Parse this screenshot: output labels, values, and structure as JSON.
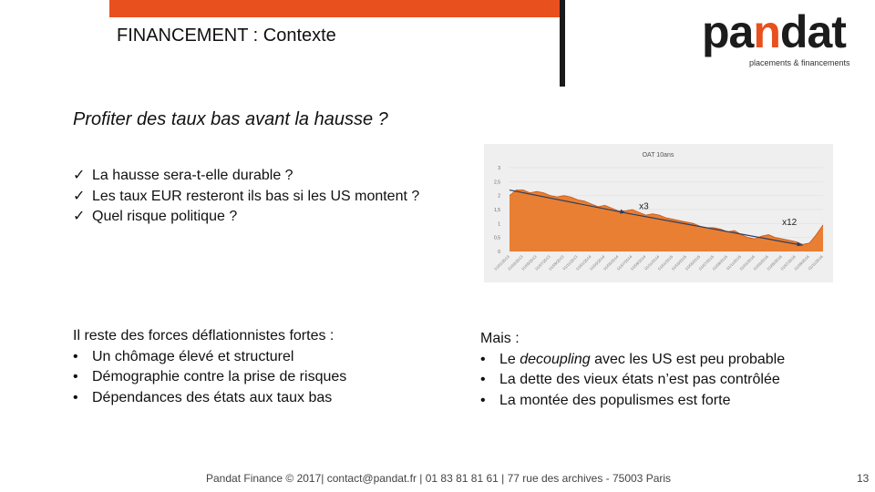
{
  "header": {
    "title": "FINANCEMENT : Contexte",
    "accent_color": "#e8501e"
  },
  "logo": {
    "word_start": "pa",
    "word_accent": "n",
    "word_end": "dat",
    "tagline": "placements & financements"
  },
  "subtitle": "Profiter des taux bas avant la hausse ?",
  "checks": [
    "La hausse sera-t-elle durable ?",
    "Les taux EUR resteront ils bas si les US montent ?",
    "Quel risque politique ?"
  ],
  "check_glyph": "✓",
  "chart_data": {
    "type": "area",
    "title": "OAT 10ans",
    "ylim": [
      0,
      3
    ],
    "y_ticks": [
      "3",
      "2,5",
      "2",
      "1,5",
      "1",
      "0,5",
      "0"
    ],
    "x_ticks": [
      "01/01/2013",
      "01/02/2013",
      "01/03/2013",
      "01/04/2013",
      "01/05/2013",
      "01/06/2013",
      "01/07/2013",
      "01/08/2013",
      "01/09/2013",
      "01/10/2013",
      "01/11/2013",
      "01/12/2013",
      "01/01/2014",
      "01/02/2014",
      "01/03/2014",
      "01/04/2014",
      "01/05/2014",
      "01/06/2014",
      "01/07/2014",
      "01/08/2014",
      "01/09/2014",
      "01/10/2014",
      "01/11/2014",
      "01/12/2014",
      "01/01/2015",
      "01/02/2015",
      "01/03/2015",
      "01/04/2015",
      "01/05/2015",
      "01/06/2015",
      "01/07/2015",
      "01/08/2015",
      "01/09/2015",
      "01/10/2015",
      "01/11/2015",
      "01/12/2015",
      "01/01/2016",
      "01/02/2016",
      "01/03/2016",
      "01/04/2016",
      "01/05/2016",
      "01/06/2016",
      "01/07/2016",
      "01/08/2016",
      "01/09/2016",
      "01/10/2016",
      "01/11/2016"
    ],
    "values": [
      2.0,
      2.2,
      2.2,
      2.1,
      2.15,
      2.1,
      2.0,
      1.95,
      2.0,
      1.95,
      1.85,
      1.8,
      1.7,
      1.6,
      1.65,
      1.55,
      1.45,
      1.45,
      1.5,
      1.4,
      1.3,
      1.35,
      1.3,
      1.2,
      1.15,
      1.1,
      1.05,
      1.0,
      0.9,
      0.85,
      0.85,
      0.8,
      0.7,
      0.75,
      0.6,
      0.5,
      0.45,
      0.55,
      0.6,
      0.5,
      0.45,
      0.4,
      0.35,
      0.25,
      0.3,
      0.6,
      0.95
    ],
    "annotations": [
      "x3",
      "x12"
    ],
    "grid": true,
    "series_color": "#e8721e"
  },
  "left_block": {
    "heading": "Il reste des forces déflationnistes fortes :",
    "items": [
      "Un chômage élevé et structurel",
      "Démographie contre la prise de risques",
      "Dépendances des états aux taux bas"
    ]
  },
  "right_block": {
    "heading": "Mais :",
    "item1_pre": "Le ",
    "item1_em": "decoupling",
    "item1_post": " avec les US est peu probable",
    "items": [
      "La dette des vieux états n’est pas contrôlée",
      "La montée des populismes est forte"
    ]
  },
  "bullet_glyph": "•",
  "footer": {
    "text": "Pandat Finance © 2017| contact@pandat.fr | 01 83 81 81 61 | 77 rue des archives - 75003 Paris",
    "page": "13"
  }
}
